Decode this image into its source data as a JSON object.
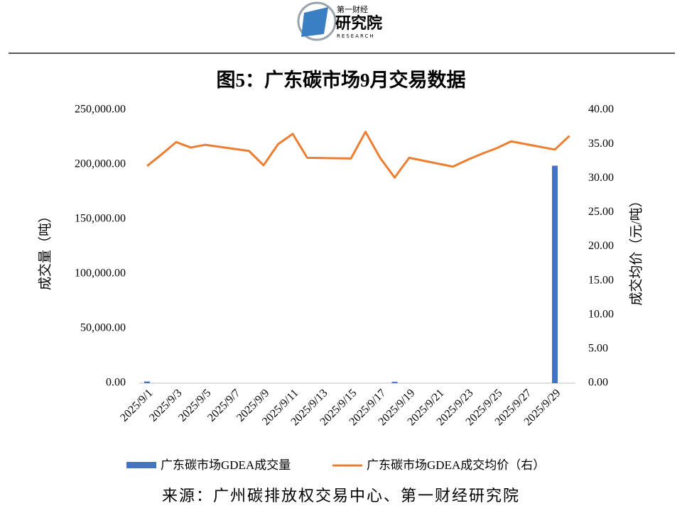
{
  "logo": {
    "top": "第一财经",
    "name": "研究院",
    "sub": "RESEARCH"
  },
  "chart_data": {
    "type": "bar-line",
    "title": "图5：广东碳市场9月交易数据",
    "source": "来源：广州碳排放权交易中心、第一财经研究院",
    "y_label": "成交量（吨）",
    "y2_label": "成交均价（元/吨）",
    "x": [
      "2025/9/1",
      "2025/9/2",
      "2025/9/3",
      "2025/9/4",
      "2025/9/5",
      "2025/9/8",
      "2025/9/9",
      "2025/9/10",
      "2025/9/11",
      "2025/9/12",
      "2025/9/15",
      "2025/9/16",
      "2025/9/17",
      "2025/9/18",
      "2025/9/19",
      "2025/9/22",
      "2025/9/23",
      "2025/9/24",
      "2025/9/25",
      "2025/9/26",
      "2025/9/29",
      "2025/9/30"
    ],
    "xticks": [
      "2025/9/1",
      "2025/9/3",
      "2025/9/5",
      "2025/9/7",
      "2025/9/9",
      "2025/9/11",
      "2025/9/13",
      "2025/9/15",
      "2025/9/17",
      "2025/9/19",
      "2025/9/21",
      "2025/9/23",
      "2025/9/25",
      "2025/9/27",
      "2025/9/29"
    ],
    "series": [
      {
        "name": "广东碳市场GDEA成交量",
        "color": "#4472c4",
        "kind": "bar",
        "values": [
          1500,
          0,
          0,
          0,
          0,
          0,
          0,
          0,
          0,
          0,
          0,
          0,
          0,
          1200,
          0,
          0,
          0,
          0,
          0,
          0,
          199000,
          0
        ]
      },
      {
        "name": "广东碳市场GDEA成交均价（右）",
        "color": "#ed7d31",
        "kind": "line",
        "axis": "y2",
        "values": [
          31.8,
          33.5,
          35.3,
          34.5,
          34.9,
          34.0,
          31.9,
          35.0,
          36.5,
          33.0,
          32.9,
          36.8,
          33.0,
          30.1,
          33.0,
          31.7,
          32.7,
          33.6,
          34.4,
          35.4,
          34.2,
          36.2
        ]
      }
    ],
    "ylim": [
      0,
      250000
    ],
    "yticks": [
      {
        "value": 0,
        "label": "0.00"
      },
      {
        "value": 50000,
        "label": "50,000.00"
      },
      {
        "value": 100000,
        "label": "100,000.00"
      },
      {
        "value": 150000,
        "label": "150,000.00"
      },
      {
        "value": 200000,
        "label": "200,000.00"
      },
      {
        "value": 250000,
        "label": "250,000.00"
      }
    ],
    "y2lim": [
      0,
      40
    ],
    "y2ticks": [
      {
        "value": 0,
        "label": "0.00"
      },
      {
        "value": 5,
        "label": "5.00"
      },
      {
        "value": 10,
        "label": "10.00"
      },
      {
        "value": 15,
        "label": "15.00"
      },
      {
        "value": 20,
        "label": "20.00"
      },
      {
        "value": 25,
        "label": "25.00"
      },
      {
        "value": 30,
        "label": "30.00"
      },
      {
        "value": 35,
        "label": "35.00"
      },
      {
        "value": 40,
        "label": "40.00"
      }
    ],
    "legend": "bottom"
  }
}
